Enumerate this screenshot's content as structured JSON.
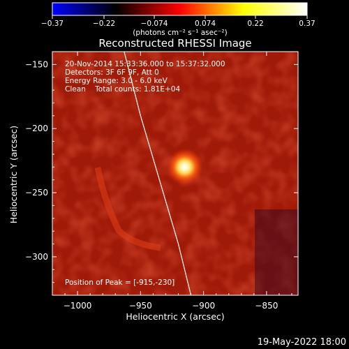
{
  "chart_data": {
    "type": "heatmap",
    "title": "Reconstructed RHESSI Image",
    "xlabel": "Heliocentric X (arcsec)",
    "ylabel": "Heliocentric Y (arcsec)",
    "xlim": [
      -1020,
      -825
    ],
    "ylim": [
      -330,
      -140
    ],
    "xticks": [
      -1000,
      -950,
      -900,
      -850
    ],
    "xtick_labels": [
      "−1000",
      "−950",
      "−900",
      "−850"
    ],
    "yticks": [
      -150,
      -200,
      -250,
      -300
    ],
    "ytick_labels": [
      "−150",
      "−200",
      "−250",
      "−300"
    ],
    "colorbar": {
      "range": [
        -0.37,
        0.37
      ],
      "ticks": [
        -0.37,
        -0.22,
        -0.074,
        0.074,
        0.22,
        0.37
      ],
      "tick_labels": [
        "−0.37",
        "−0.22",
        "−0.074",
        "0.074",
        "0.22",
        "0.37"
      ],
      "units_label": "(photons cm⁻² s⁻¹ asec⁻²)",
      "colormap": [
        "#0000ff",
        "#000000",
        "#ff0000",
        "#ffff00",
        "#ffffff"
      ]
    },
    "annotations": [
      "20-Nov-2014 15:33:36.000 to 15:37:32.000",
      "Detectors: 3F 6F 9F, Att 0",
      "Energy Range: 3.0 - 6.0 keV",
      "Clean    Total counts: 1.81E+04"
    ],
    "peak": {
      "x": -915,
      "y": -230
    },
    "peak_label": "Position of Peak = [-915,-230]",
    "limb_line": [
      [
        -963,
        -140
      ],
      [
        -950,
        -190
      ],
      [
        -935,
        -240
      ],
      [
        -920,
        -290
      ],
      [
        -910,
        -330
      ]
    ],
    "image_style": {
      "background": "#a01a08",
      "peak_color": "#ffffff"
    }
  },
  "footer": {
    "date_label": "19-May-2022 18:00"
  }
}
